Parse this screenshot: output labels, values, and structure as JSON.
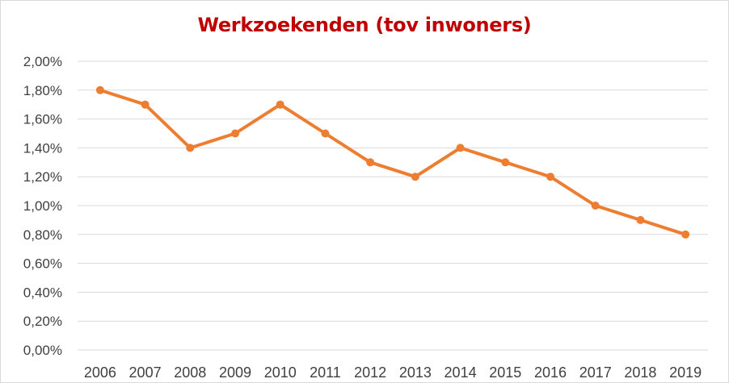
{
  "chart_data": {
    "type": "line",
    "title": "Werkzoekenden (tov inwoners)",
    "categories": [
      "2006",
      "2007",
      "2008",
      "2009",
      "2010",
      "2011",
      "2012",
      "2013",
      "2014",
      "2015",
      "2016",
      "2017",
      "2018",
      "2019"
    ],
    "series": [
      {
        "values": [
          1.8,
          1.7,
          1.4,
          1.5,
          1.7,
          1.5,
          1.3,
          1.2,
          1.4,
          1.3,
          1.2,
          1.0,
          0.9,
          0.8
        ]
      }
    ],
    "y_ticks": [
      "0,00%",
      "0,20%",
      "0,40%",
      "0,60%",
      "0,80%",
      "1,00%",
      "1,20%",
      "1,40%",
      "1,60%",
      "1,80%",
      "2,00%"
    ],
    "y_tick_values": [
      0,
      0.2,
      0.4,
      0.6,
      0.8,
      1.0,
      1.2,
      1.4,
      1.6,
      1.8,
      2.0
    ],
    "ylim": [
      0,
      2.0
    ],
    "unit": "%",
    "grid": true,
    "legend": "none",
    "colors": {
      "line": "#ed7d31",
      "title": "#c00000",
      "grid": "#d9d9d9",
      "axis_text": "#404040"
    }
  }
}
